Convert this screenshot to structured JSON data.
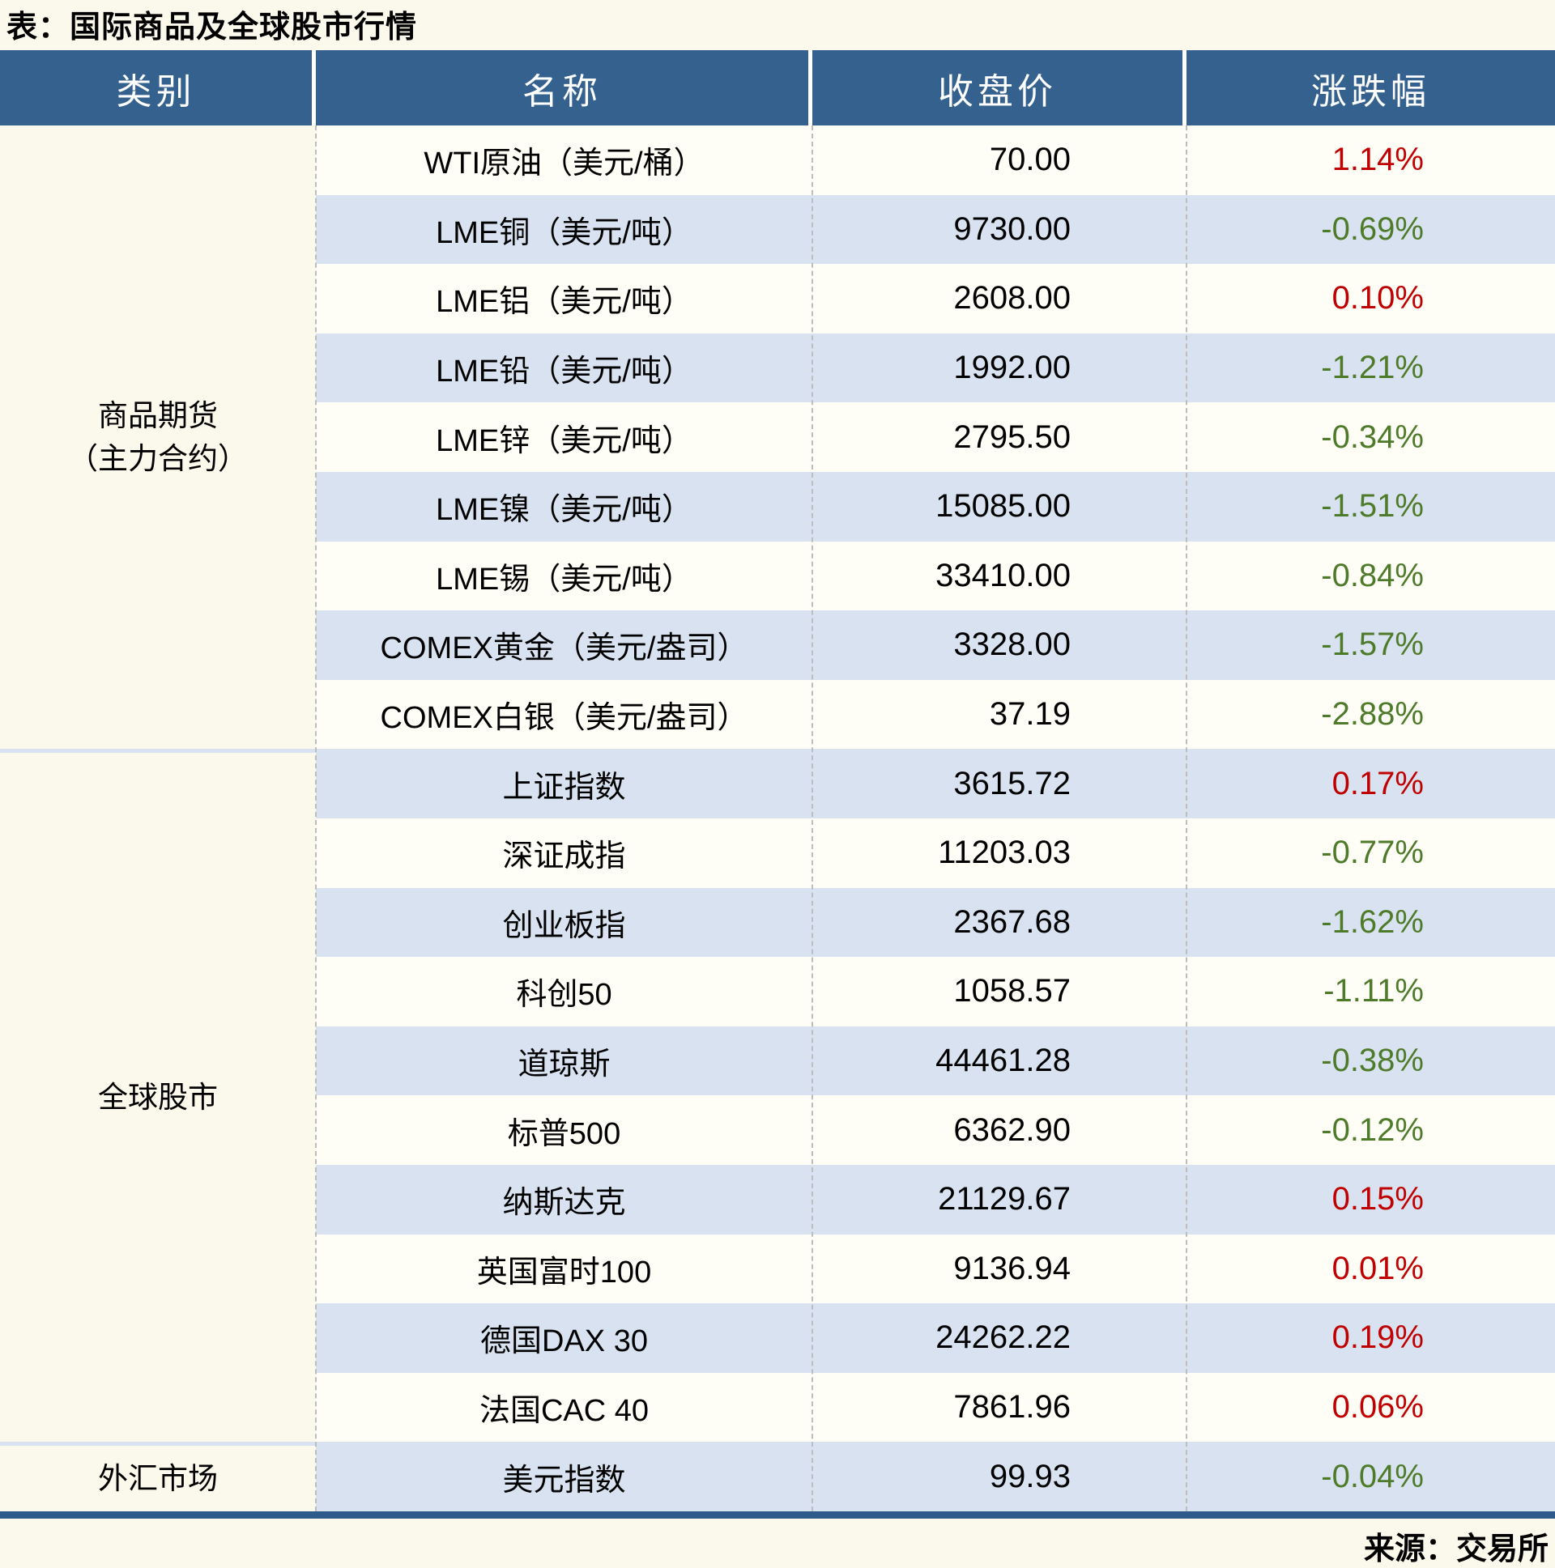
{
  "title": "表：国际商品及全球股市行情",
  "source": "来源：交易所",
  "colors": {
    "header_bg": "#35618F",
    "row_alt_bg": "#D9E2F0",
    "page_bg": "#FBF8EC",
    "positive": "#C00000",
    "negative": "#4E7B2A",
    "bottom_border": "#2E5A8B"
  },
  "table": {
    "headers": [
      "类别",
      "名称",
      "收盘价",
      "涨跌幅"
    ],
    "sections": [
      {
        "category": "商品期货（主力合约）",
        "category_line1": "商品期货",
        "category_line2": "（主力合约）",
        "rows": [
          {
            "name": "WTI原油（美元/桶）",
            "close": "70.00",
            "change": "1.14%"
          },
          {
            "name": "LME铜（美元/吨）",
            "close": "9730.00",
            "change": "-0.69%"
          },
          {
            "name": "LME铝（美元/吨）",
            "close": "2608.00",
            "change": "0.10%"
          },
          {
            "name": "LME铅（美元/吨）",
            "close": "1992.00",
            "change": "-1.21%"
          },
          {
            "name": "LME锌（美元/吨）",
            "close": "2795.50",
            "change": "-0.34%"
          },
          {
            "name": "LME镍（美元/吨）",
            "close": "15085.00",
            "change": "-1.51%"
          },
          {
            "name": "LME锡（美元/吨）",
            "close": "33410.00",
            "change": "-0.84%"
          },
          {
            "name": "COMEX黄金（美元/盎司）",
            "close": "3328.00",
            "change": "-1.57%"
          },
          {
            "name": "COMEX白银（美元/盎司）",
            "close": "37.19",
            "change": "-2.88%"
          }
        ]
      },
      {
        "category": "全球股市",
        "rows": [
          {
            "name": "上证指数",
            "close": "3615.72",
            "change": "0.17%"
          },
          {
            "name": "深证成指",
            "close": "11203.03",
            "change": "-0.77%"
          },
          {
            "name": "创业板指",
            "close": "2367.68",
            "change": "-1.62%"
          },
          {
            "name": "科创50",
            "close": "1058.57",
            "change": "-1.11%"
          },
          {
            "name": "道琼斯",
            "close": "44461.28",
            "change": "-0.38%"
          },
          {
            "name": "标普500",
            "close": "6362.90",
            "change": "-0.12%"
          },
          {
            "name": "纳斯达克",
            "close": "21129.67",
            "change": "0.15%"
          },
          {
            "name": "英国富时100",
            "close": "9136.94",
            "change": "0.01%"
          },
          {
            "name": "德国DAX 30",
            "close": "24262.22",
            "change": "0.19%"
          },
          {
            "name": "法国CAC 40",
            "close": "7861.96",
            "change": "0.06%"
          }
        ]
      },
      {
        "category": "外汇市场",
        "rows": [
          {
            "name": "美元指数",
            "close": "99.93",
            "change": "-0.04%"
          }
        ]
      }
    ]
  }
}
